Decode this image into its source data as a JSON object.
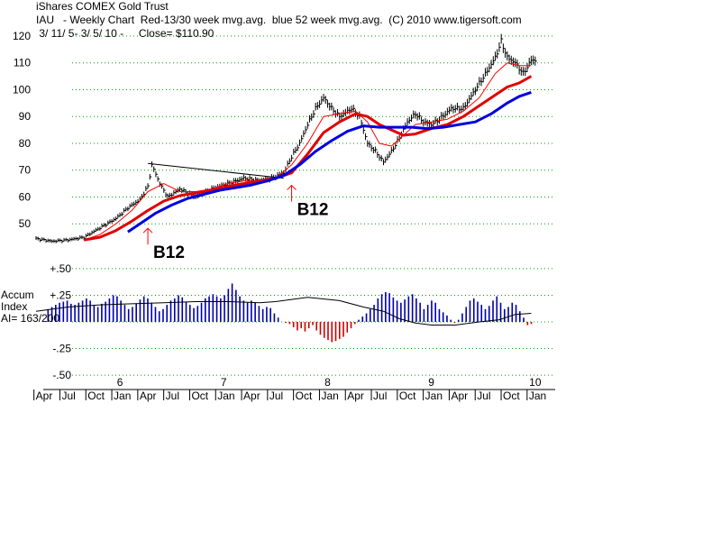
{
  "header": {
    "line1": "iShares COMEX Gold Trust",
    "line2": "IAU   - Weekly Chart  Red-13/30 week mvg.avg.  blue 52 week mvg.avg.  (C) 2010 www.tigersoft.com",
    "line3": " 3/ 11/ 5- 3/ 5/ 10 -     Close= $110.90"
  },
  "chart_data": [
    {
      "type": "line",
      "panel": "price",
      "y_ticks": [
        "50",
        "60",
        "70",
        "80",
        "90",
        "100",
        "110",
        "120"
      ],
      "ylim": [
        40,
        122
      ],
      "x_range_weeks": [
        0,
        260
      ],
      "grid": "dotted horizontal",
      "series": [
        {
          "color": "#000000",
          "style": "weekly high-low bars",
          "points": [
            [
              0,
              44.5
            ],
            [
              8,
              43.5
            ],
            [
              16,
              44
            ],
            [
              24,
              45
            ],
            [
              32,
              48.5
            ],
            [
              40,
              52
            ],
            [
              46,
              56
            ],
            [
              52,
              59
            ],
            [
              56,
              64
            ],
            [
              58,
              72
            ],
            [
              62,
              65
            ],
            [
              66,
              60
            ],
            [
              72,
              63
            ],
            [
              80,
              60
            ],
            [
              88,
              63
            ],
            [
              96,
              65
            ],
            [
              104,
              67
            ],
            [
              112,
              66
            ],
            [
              118,
              67
            ],
            [
              124,
              69
            ],
            [
              128,
              75
            ],
            [
              132,
              80
            ],
            [
              136,
              87
            ],
            [
              140,
              93
            ],
            [
              144,
              97
            ],
            [
              148,
              93
            ],
            [
              152,
              90
            ],
            [
              158,
              93
            ],
            [
              162,
              90
            ],
            [
              166,
              80
            ],
            [
              170,
              77
            ],
            [
              174,
              73
            ],
            [
              178,
              77
            ],
            [
              182,
              82
            ],
            [
              186,
              88
            ],
            [
              190,
              91
            ],
            [
              194,
              88
            ],
            [
              198,
              87
            ],
            [
              202,
              89
            ],
            [
              208,
              93
            ],
            [
              214,
              93
            ],
            [
              220,
              100
            ],
            [
              226,
              107
            ],
            [
              230,
              112
            ],
            [
              233,
              118
            ],
            [
              236,
              112
            ],
            [
              240,
              110
            ],
            [
              244,
              106
            ],
            [
              248,
              111
            ]
          ]
        },
        {
          "color": "#ff0000",
          "style": "thin line (13 week avg)",
          "points": [
            [
              24,
              44
            ],
            [
              32,
              46
            ],
            [
              40,
              50
            ],
            [
              48,
              55
            ],
            [
              56,
              62
            ],
            [
              64,
              65
            ],
            [
              72,
              62
            ],
            [
              80,
              62
            ],
            [
              88,
              63
            ],
            [
              96,
              65
            ],
            [
              104,
              66
            ],
            [
              112,
              66
            ],
            [
              120,
              67
            ],
            [
              128,
              72
            ],
            [
              136,
              80
            ],
            [
              144,
              90
            ],
            [
              152,
              91
            ],
            [
              160,
              92
            ],
            [
              166,
              88
            ],
            [
              172,
              80
            ],
            [
              178,
              79
            ],
            [
              184,
              83
            ],
            [
              190,
              87
            ],
            [
              198,
              88
            ],
            [
              206,
              89
            ],
            [
              214,
              92
            ],
            [
              222,
              97
            ],
            [
              230,
              106
            ],
            [
              236,
              110
            ],
            [
              242,
              109
            ],
            [
              248,
              109
            ]
          ]
        },
        {
          "color": "#e00000",
          "style": "thick line (30 week avg)",
          "points": [
            [
              24,
              44
            ],
            [
              32,
              45
            ],
            [
              40,
              47.5
            ],
            [
              48,
              51
            ],
            [
              56,
              55
            ],
            [
              64,
              58.5
            ],
            [
              72,
              60.5
            ],
            [
              80,
              61.5
            ],
            [
              88,
              62.5
            ],
            [
              96,
              64
            ],
            [
              104,
              65
            ],
            [
              112,
              66
            ],
            [
              120,
              67
            ],
            [
              128,
              69
            ],
            [
              136,
              76
            ],
            [
              144,
              84
            ],
            [
              152,
              88
            ],
            [
              160,
              91
            ],
            [
              166,
              90
            ],
            [
              172,
              87
            ],
            [
              178,
              85
            ],
            [
              184,
              83
            ],
            [
              190,
              83.5
            ],
            [
              198,
              85.5
            ],
            [
              206,
              87
            ],
            [
              214,
              90
            ],
            [
              222,
              94
            ],
            [
              230,
              98
            ],
            [
              236,
              101
            ],
            [
              242,
              102.5
            ],
            [
              248,
              105
            ]
          ]
        },
        {
          "color": "#0000dd",
          "style": "thick line (52 week avg)",
          "points": [
            [
              46,
              47
            ],
            [
              52,
              50
            ],
            [
              60,
              54
            ],
            [
              68,
              57
            ],
            [
              76,
              59.5
            ],
            [
              84,
              61
            ],
            [
              92,
              62.5
            ],
            [
              100,
              63.5
            ],
            [
              108,
              64.5
            ],
            [
              116,
              66
            ],
            [
              124,
              68
            ],
            [
              132,
              72
            ],
            [
              140,
              77
            ],
            [
              148,
              81
            ],
            [
              156,
              84.5
            ],
            [
              164,
              86.5
            ],
            [
              172,
              86
            ],
            [
              180,
              86
            ],
            [
              188,
              86
            ],
            [
              196,
              85.5
            ],
            [
              204,
              86
            ],
            [
              212,
              87
            ],
            [
              220,
              88
            ],
            [
              228,
              91
            ],
            [
              236,
              95
            ],
            [
              242,
              97.5
            ],
            [
              248,
              99
            ]
          ]
        }
      ],
      "annotations": [
        {
          "text": "B12",
          "week": 56,
          "price": 47
        },
        {
          "text": "B12",
          "week": 128,
          "price": 63
        }
      ],
      "trendline": {
        "from": [
          56,
          72.5
        ],
        "to": [
          124,
          67
        ]
      }
    },
    {
      "type": "bar",
      "panel": "accumulation",
      "title_lines": [
        "Accum",
        "Index",
        "AI= 163/200"
      ],
      "y_ticks": [
        "+.50",
        "+.25",
        "-.25",
        "-.50"
      ],
      "y_tick_values": [
        0.5,
        0.25,
        -0.25,
        -0.5
      ],
      "ylim": [
        -0.55,
        0.55
      ],
      "positive_color": "#0000aa",
      "negative_color": "#cc0000",
      "values": [
        0.12,
        0.14,
        0.16,
        0.18,
        0.19,
        0.2,
        0.17,
        0.16,
        0.18,
        0.2,
        0.22,
        0.2,
        0.16,
        0.14,
        0.17,
        0.19,
        0.22,
        0.25,
        0.24,
        0.2,
        0.16,
        0.12,
        0.14,
        0.17,
        0.21,
        0.24,
        0.22,
        0.18,
        0.14,
        0.1,
        0.12,
        0.16,
        0.2,
        0.22,
        0.25,
        0.23,
        0.19,
        0.16,
        0.13,
        0.15,
        0.18,
        0.22,
        0.24,
        0.26,
        0.24,
        0.22,
        0.25,
        0.31,
        0.36,
        0.3,
        0.24,
        0.2,
        0.18,
        0.2,
        0.18,
        0.15,
        0.12,
        0.14,
        0.13,
        0.08,
        0.04,
        0.0,
        -0.01,
        -0.02,
        -0.05,
        -0.08,
        -0.06,
        -0.09,
        -0.06,
        -0.03,
        -0.08,
        -0.12,
        -0.15,
        -0.17,
        -0.19,
        -0.18,
        -0.16,
        -0.14,
        -0.1,
        -0.06,
        -0.02,
        0.02,
        0.05,
        0.08,
        0.12,
        0.16,
        0.22,
        0.26,
        0.28,
        0.27,
        0.23,
        0.2,
        0.18,
        0.21,
        0.24,
        0.26,
        0.22,
        0.18,
        0.12,
        0.16,
        0.2,
        0.18,
        0.12,
        0.09,
        0.06,
        0.02,
        -0.01,
        0.02,
        0.08,
        0.14,
        0.2,
        0.22,
        0.19,
        0.16,
        0.12,
        0.15,
        0.2,
        0.24,
        0.18,
        0.12,
        0.14,
        0.18,
        0.16,
        0.1,
        0.04,
        -0.03,
        -0.02,
        0.0
      ],
      "signal_line": {
        "color": "#000000",
        "points": [
          [
            0,
            0.1
          ],
          [
            16,
            0.14
          ],
          [
            32,
            0.16
          ],
          [
            48,
            0.17
          ],
          [
            64,
            0.18
          ],
          [
            80,
            0.19
          ],
          [
            96,
            0.19
          ],
          [
            112,
            0.18
          ],
          [
            120,
            0.19
          ],
          [
            136,
            0.23
          ],
          [
            152,
            0.2
          ],
          [
            164,
            0.14
          ],
          [
            174,
            0.1
          ],
          [
            182,
            0.03
          ],
          [
            190,
            -0.01
          ],
          [
            198,
            -0.03
          ],
          [
            210,
            -0.03
          ],
          [
            222,
            0.0
          ],
          [
            232,
            0.02
          ],
          [
            240,
            0.07
          ],
          [
            248,
            0.08
          ]
        ]
      }
    }
  ],
  "x_axis": {
    "year_labels": [
      {
        "text": "6",
        "week": 42
      },
      {
        "text": "7",
        "week": 94
      },
      {
        "text": "8",
        "week": 146
      },
      {
        "text": "9",
        "week": 198
      },
      {
        "text": "10",
        "week": 250
      }
    ],
    "month_labels": [
      {
        "text": "Apr",
        "week": 3
      },
      {
        "text": "Jul",
        "week": 16
      },
      {
        "text": "Oct",
        "week": 29
      },
      {
        "text": "Jan",
        "week": 42
      },
      {
        "text": "Apr",
        "week": 55
      },
      {
        "text": "Jul",
        "week": 68
      },
      {
        "text": "Oct",
        "week": 81
      },
      {
        "text": "Jan",
        "week": 94
      },
      {
        "text": "Apr",
        "week": 107
      },
      {
        "text": "Jul",
        "week": 120
      },
      {
        "text": "Oct",
        "week": 133
      },
      {
        "text": "Jan",
        "week": 146
      },
      {
        "text": "Apr",
        "week": 159
      },
      {
        "text": "Jul",
        "week": 172
      },
      {
        "text": "Oct",
        "week": 185
      },
      {
        "text": "Jan",
        "week": 198
      },
      {
        "text": "Apr",
        "week": 211
      },
      {
        "text": "Jul",
        "week": 224
      },
      {
        "text": "Oct",
        "week": 237
      },
      {
        "text": "Jan",
        "week": 250
      }
    ]
  }
}
